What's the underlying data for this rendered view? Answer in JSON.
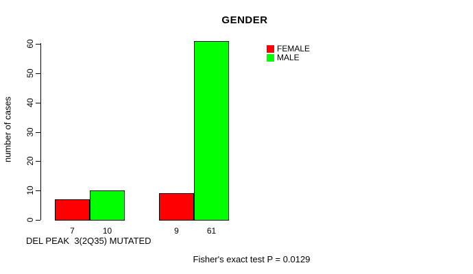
{
  "chart_data": {
    "type": "bar",
    "title": "GENDER",
    "ylabel": "number of cases",
    "xlabel": "DEL PEAK  3(2Q35) MUTATED",
    "yticks": [
      0,
      10,
      20,
      30,
      40,
      50,
      60
    ],
    "ylim": [
      0,
      61
    ],
    "grid": false,
    "legend_position": "top-right-inside",
    "categories": [
      "DEL PEAK 3(2Q35)",
      "MUTATED"
    ],
    "series": [
      {
        "name": "FEMALE",
        "color": "#ff0000",
        "values": [
          7,
          9
        ]
      },
      {
        "name": "MALE",
        "color": "#00ff00",
        "values": [
          10,
          61
        ]
      }
    ],
    "groups": [
      {
        "bars": [
          {
            "series": "FEMALE",
            "value": 7,
            "label": "7",
            "color": "#ff0000"
          },
          {
            "series": "MALE",
            "value": 10,
            "label": "10",
            "color": "#00ff00"
          }
        ]
      },
      {
        "bars": [
          {
            "series": "FEMALE",
            "value": 9,
            "label": "9",
            "color": "#ff0000"
          },
          {
            "series": "MALE",
            "value": 61,
            "label": "61",
            "color": "#00ff00"
          }
        ]
      }
    ],
    "annotation": "Fisher's exact test P = 0.0129"
  },
  "legend": {
    "items": [
      {
        "label": "FEMALE",
        "color": "#ff0000"
      },
      {
        "label": "MALE",
        "color": "#00ff00"
      }
    ]
  },
  "footnote": "Fisher's exact test P = 0.0129",
  "colors": {
    "female": "#ff0000",
    "male": "#00ff00",
    "axis": "#000000",
    "background": "#ffffff"
  }
}
